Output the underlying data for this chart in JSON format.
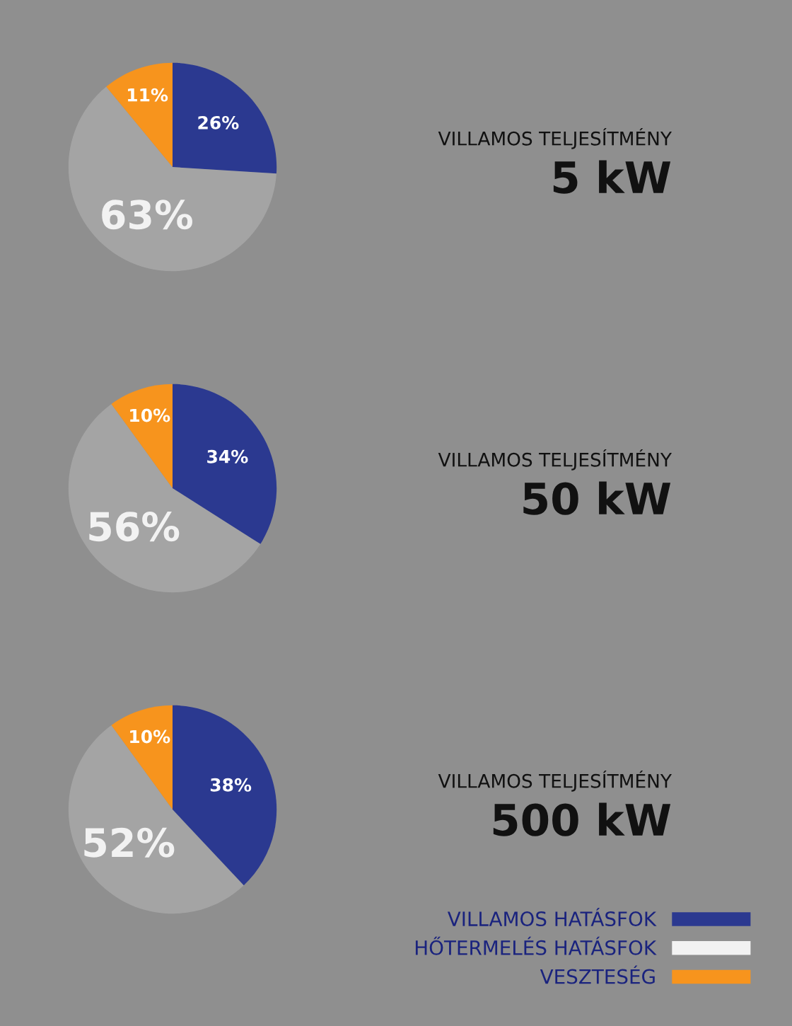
{
  "chart_data": [
    {
      "type": "pie",
      "title": "VILLAMOS TELJESÍTMÉNY",
      "subtitle": "5 kW",
      "categories": [
        null,
        null,
        null
      ],
      "values": [
        26,
        63,
        11
      ],
      "value_labels": [
        "26%",
        "63%",
        "11%"
      ],
      "colors": [
        "#2b3990",
        "#f2f2f2",
        "#f7941d"
      ],
      "legend": false
    },
    {
      "type": "pie",
      "title": "VILLAMOS TELJESÍTMÉNY",
      "subtitle": "50 kW",
      "categories": [
        null,
        null,
        null
      ],
      "values": [
        34,
        56,
        10
      ],
      "value_labels": [
        "34%",
        "56%",
        "10%"
      ],
      "colors": [
        "#2b3990",
        "#f2f2f2",
        "#f7941d"
      ],
      "legend": false
    },
    {
      "type": "pie",
      "title": "VILLAMOS TELJESÍTMÉNY",
      "subtitle": "500 kW",
      "categories": [
        "VILLAMOS HATÁSFOK",
        "HŐTERMELÉS HATÁSFOK",
        "VESZTESÉG"
      ],
      "values": [
        38,
        52,
        10
      ],
      "value_labels": [
        "38%",
        "52%",
        "10%"
      ],
      "colors": [
        "#2b3990",
        "#f2f2f2",
        "#f7941d"
      ],
      "legend": "bottom right"
    }
  ]
}
